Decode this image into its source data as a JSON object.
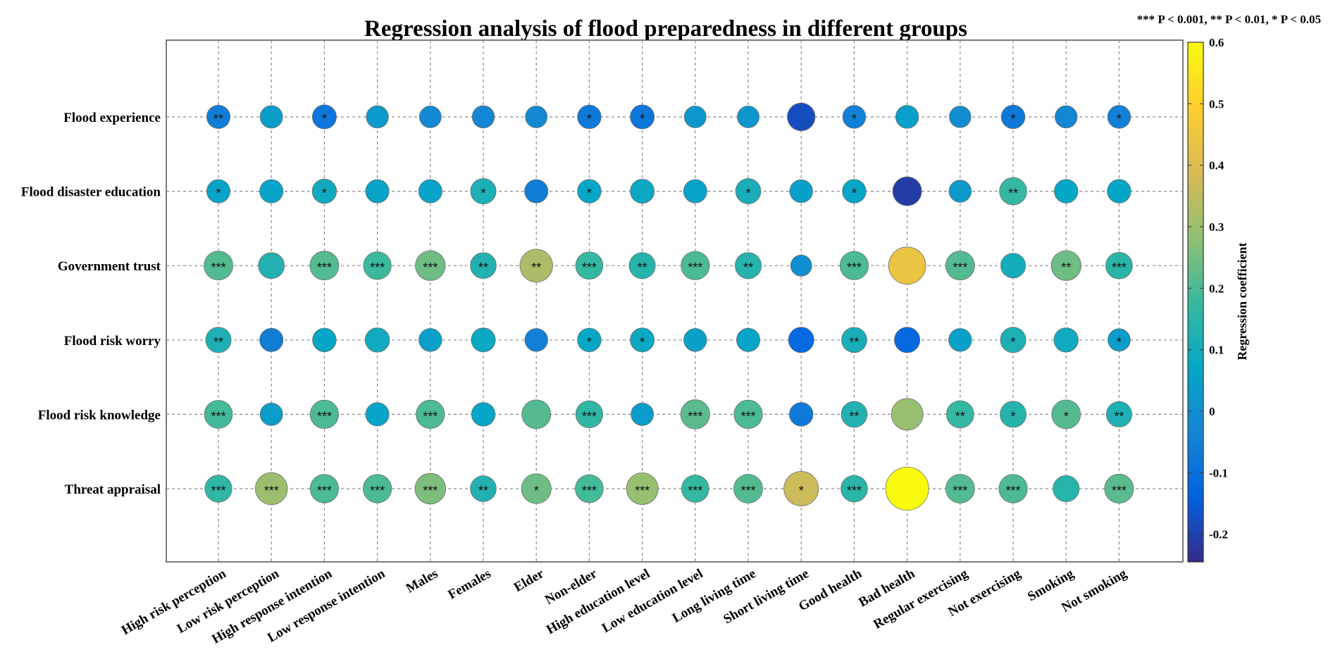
{
  "chart_data": {
    "type": "scatter",
    "subtype": "bubble-heatmap",
    "title": "Regression analysis of flood preparedness in different groups",
    "significance_legend": "*** P < 0.001, ** P < 0.01, * P < 0.05",
    "colorbar_label": "Regression coefficient",
    "colorbar_ticks": [
      "0.6",
      "0.5",
      "0.4",
      "0.3",
      "0.2",
      "0.1",
      "0",
      "-0.1",
      "-0.2"
    ],
    "colorbar_range": [
      -0.245,
      0.6
    ],
    "grid": true,
    "categories_x": [
      "High risk perception",
      "Low risk perception",
      "High response intention",
      "Low response intention",
      "Males",
      "Females",
      "Elder",
      "Non-elder",
      "High education level",
      "Low education level",
      "Long living time",
      "Short living time",
      "Good health",
      "Bad health",
      "Regular exercising",
      "Not exercising",
      "Smoking",
      "Not smoking"
    ],
    "categories_y": [
      "Flood experience",
      "Flood disaster education",
      "Government trust",
      "Flood risk worry",
      "Flood risk knowledge",
      "Threat appraisal"
    ],
    "values": [
      [
        -0.06,
        0.04,
        -0.08,
        0.03,
        -0.02,
        -0.03,
        -0.02,
        -0.07,
        -0.08,
        0.02,
        0.02,
        -0.18,
        -0.05,
        0.05,
        -0.01,
        -0.07,
        -0.03,
        -0.05
      ],
      [
        0.06,
        0.06,
        0.09,
        0.06,
        0.06,
        0.12,
        -0.06,
        0.07,
        0.08,
        0.06,
        0.11,
        0.05,
        0.07,
        -0.21,
        0.03,
        0.17,
        0.07,
        0.07
      ],
      [
        0.21,
        0.13,
        0.21,
        0.18,
        0.24,
        0.13,
        0.32,
        0.17,
        0.14,
        0.2,
        0.14,
        0.0,
        0.2,
        0.44,
        0.21,
        0.1,
        0.24,
        0.15
      ],
      [
        0.12,
        -0.06,
        0.07,
        0.09,
        0.05,
        0.08,
        -0.05,
        0.07,
        0.08,
        0.05,
        0.06,
        -0.12,
        0.11,
        -0.12,
        0.05,
        0.12,
        0.09,
        0.04
      ],
      [
        0.19,
        0.04,
        0.2,
        0.06,
        0.2,
        0.07,
        0.21,
        0.16,
        0.04,
        0.22,
        0.2,
        -0.07,
        0.13,
        0.29,
        0.17,
        0.14,
        0.21,
        0.12
      ],
      [
        0.16,
        0.3,
        0.2,
        0.2,
        0.26,
        0.13,
        0.24,
        0.19,
        0.29,
        0.17,
        0.21,
        0.37,
        0.15,
        0.6,
        0.21,
        0.2,
        0.14,
        0.22
      ]
    ],
    "significance": [
      [
        "**",
        "",
        "*",
        "",
        "",
        "",
        "",
        "*",
        "*",
        "",
        "",
        "",
        "*",
        "",
        "",
        "*",
        "",
        "*"
      ],
      [
        "*",
        "",
        "*",
        "",
        "",
        "*",
        "",
        "*",
        "",
        "",
        "*",
        "",
        "*",
        "",
        "",
        "**",
        "",
        ""
      ],
      [
        "***",
        "",
        "***",
        "***",
        "***",
        "**",
        "**",
        "***",
        "**",
        "***",
        "**",
        "",
        "***",
        "",
        "***",
        "",
        "**",
        "***"
      ],
      [
        "**",
        "",
        "",
        "",
        "",
        "",
        "",
        "*",
        "*",
        "",
        "",
        "",
        "**",
        "",
        "",
        "*",
        "",
        "*"
      ],
      [
        "***",
        "",
        "***",
        "",
        "***",
        "",
        "",
        "***",
        "",
        "***",
        "***",
        "",
        "**",
        "",
        "**",
        "*",
        "*",
        "**"
      ],
      [
        "***",
        "***",
        "***",
        "***",
        "***",
        "**",
        "*",
        "***",
        "***",
        "***",
        "***",
        "*",
        "***",
        "",
        "***",
        "***",
        "",
        "***"
      ]
    ]
  }
}
